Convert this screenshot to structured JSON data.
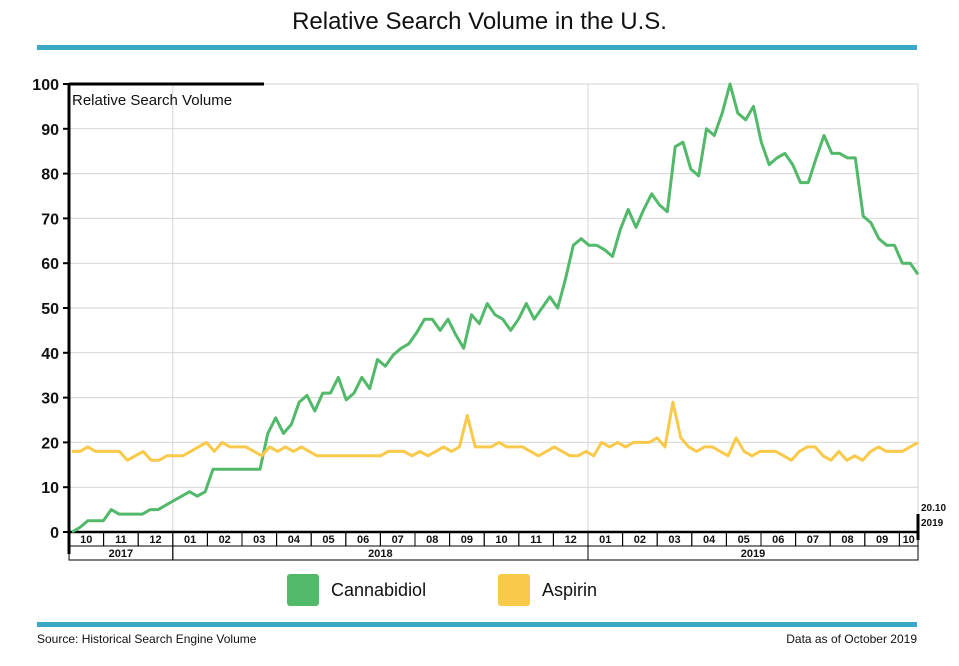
{
  "title": "Relative Search Volume in the U.S.",
  "footer": {
    "source": "Source: Historical Search Engine Volume",
    "asof": "Data as of October 2019"
  },
  "chart_data": {
    "type": "line",
    "ylabel": "Relative Search Volume",
    "ylim": [
      0,
      100
    ],
    "yticks": [
      0,
      10,
      20,
      30,
      40,
      50,
      60,
      70,
      80,
      90,
      100
    ],
    "grid": true,
    "end_label": [
      "20.10",
      "2019"
    ],
    "months": [
      {
        "label": "10",
        "year": "2017"
      },
      {
        "label": "11",
        "year": "2017"
      },
      {
        "label": "12",
        "year": "2017"
      },
      {
        "label": "01",
        "year": "2018"
      },
      {
        "label": "02",
        "year": "2018"
      },
      {
        "label": "03",
        "year": "2018"
      },
      {
        "label": "04",
        "year": "2018"
      },
      {
        "label": "05",
        "year": "2018"
      },
      {
        "label": "06",
        "year": "2018"
      },
      {
        "label": "07",
        "year": "2018"
      },
      {
        "label": "08",
        "year": "2018"
      },
      {
        "label": "09",
        "year": "2018"
      },
      {
        "label": "10",
        "year": "2018"
      },
      {
        "label": "11",
        "year": "2018"
      },
      {
        "label": "12",
        "year": "2018"
      },
      {
        "label": "01",
        "year": "2019"
      },
      {
        "label": "02",
        "year": "2019"
      },
      {
        "label": "03",
        "year": "2019"
      },
      {
        "label": "04",
        "year": "2019"
      },
      {
        "label": "05",
        "year": "2019"
      },
      {
        "label": "06",
        "year": "2019"
      },
      {
        "label": "07",
        "year": "2019"
      },
      {
        "label": "08",
        "year": "2019"
      },
      {
        "label": "09",
        "year": "2019"
      },
      {
        "label": "10",
        "year": "2019"
      }
    ],
    "years": [
      "2017",
      "2018",
      "2019"
    ],
    "series": [
      {
        "name": "Cannabidiol",
        "color": "#52b96a",
        "values": [
          0,
          1,
          2.5,
          2.5,
          2.5,
          5,
          4,
          4,
          4,
          4,
          5,
          5,
          6,
          7,
          8,
          9,
          8,
          9,
          14,
          14,
          14,
          14,
          14,
          14,
          14,
          22,
          25.5,
          22,
          24,
          29,
          30.5,
          27,
          31,
          31,
          34.5,
          29.5,
          31,
          34.5,
          32,
          38.5,
          37,
          39.5,
          41,
          42,
          44.5,
          47.5,
          47.5,
          45,
          47.5,
          44,
          41,
          48.5,
          46.5,
          51,
          48.5,
          47.5,
          45,
          47.5,
          51,
          47.5,
          50,
          52.5,
          50,
          56.5,
          64,
          65.5,
          64,
          64,
          63,
          61.5,
          67.5,
          72,
          68,
          72,
          75.5,
          73,
          71.5,
          86,
          87,
          81,
          79.5,
          90,
          88.5,
          93.5,
          100,
          93.5,
          92,
          95,
          87,
          82,
          83.5,
          84.5,
          82,
          78,
          78,
          83.5,
          88.5,
          84.5,
          84.5,
          83.5,
          83.5,
          70.5,
          69,
          65.5,
          64,
          64,
          60,
          60,
          57.5
        ]
      },
      {
        "name": "Aspirin",
        "color": "#f9c94a",
        "values": [
          18,
          18,
          19,
          18,
          18,
          18,
          18,
          16,
          17,
          18,
          16,
          16,
          17,
          17,
          17,
          18,
          19,
          20,
          18,
          20,
          19,
          19,
          19,
          18,
          17,
          19,
          18,
          19,
          18,
          19,
          18,
          17,
          17,
          17,
          17,
          17,
          17,
          17,
          17,
          17,
          18,
          18,
          18,
          17,
          18,
          17,
          18,
          19,
          18,
          19,
          26,
          19,
          19,
          19,
          20,
          19,
          19,
          19,
          18,
          17,
          18,
          19,
          18,
          17,
          17,
          18,
          17,
          20,
          19,
          20,
          19,
          20,
          20,
          20,
          21,
          19,
          29,
          21,
          19,
          18,
          19,
          19,
          18,
          17,
          21,
          18,
          17,
          18,
          18,
          18,
          17,
          16,
          18,
          19,
          19,
          17,
          16,
          18,
          16,
          17,
          16,
          18,
          19,
          18,
          18,
          18,
          19,
          20
        ]
      }
    ]
  }
}
